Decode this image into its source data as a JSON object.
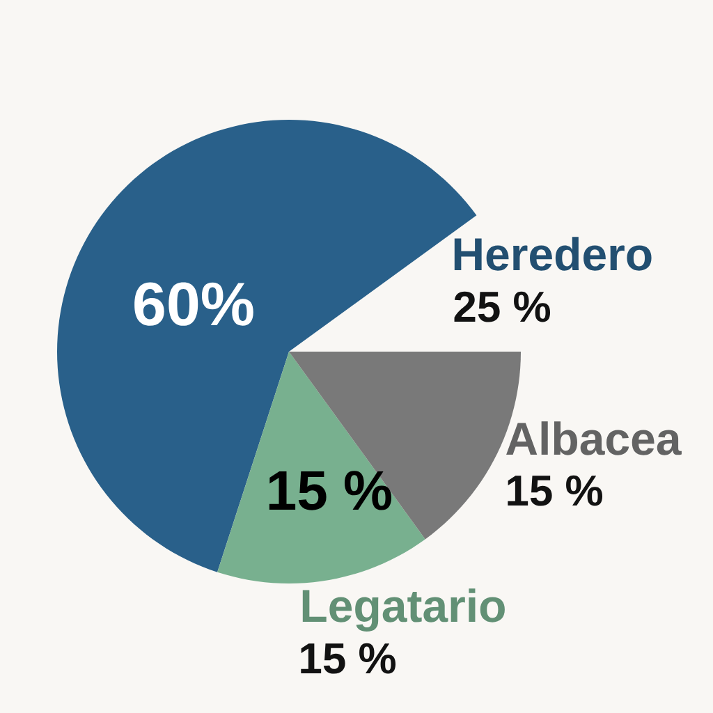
{
  "chart_data": {
    "type": "pie",
    "categories": [
      "Heredero",
      "Legatario",
      "Albacea"
    ],
    "values": [
      60,
      15,
      15
    ],
    "colors": [
      "#29608a",
      "#78b08f",
      "#797979"
    ],
    "value_labels": [
      "60%",
      "15 %",
      null
    ],
    "annotations": [
      {
        "text": "25 %",
        "x": "Heredero"
      },
      {
        "text": "15 %",
        "x": "Legatario"
      },
      {
        "text": "15 %",
        "x": "Albacea"
      }
    ]
  }
}
